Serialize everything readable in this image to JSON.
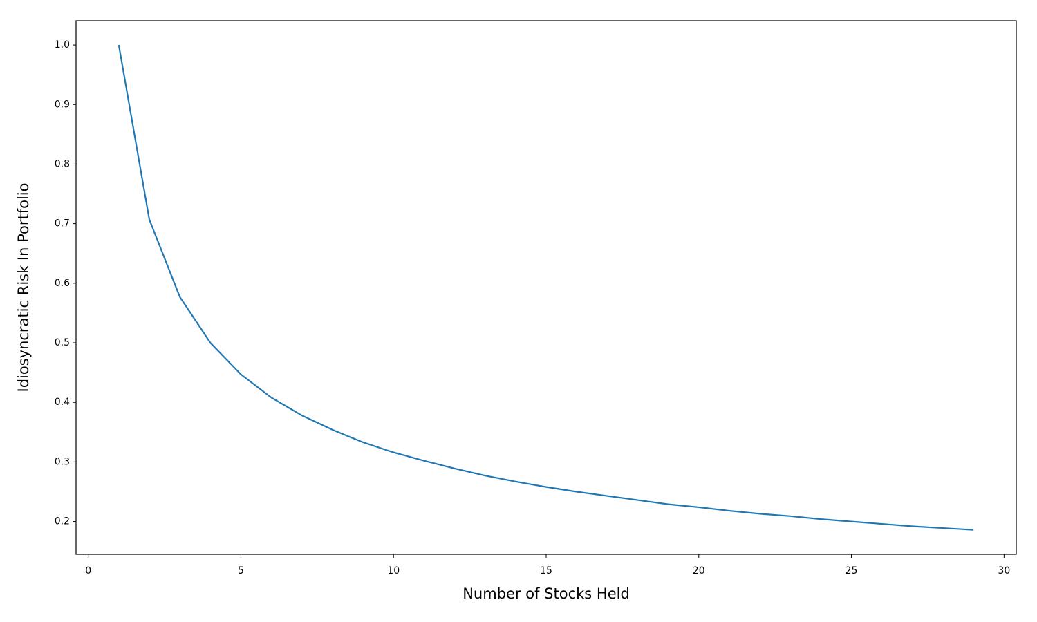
{
  "chart_data": {
    "type": "line",
    "x_label": "Number of Stocks Held",
    "y_label": "Idiosyncratic Risk In Portfolio",
    "x": [
      1,
      2,
      3,
      4,
      5,
      6,
      7,
      8,
      9,
      10,
      11,
      12,
      13,
      14,
      15,
      16,
      17,
      18,
      19,
      20,
      21,
      22,
      23,
      24,
      25,
      26,
      27,
      28,
      29
    ],
    "series": [
      {
        "color": "#1f77b4",
        "values": [
          1,
          0.707,
          0.577,
          0.5,
          0.447,
          0.408,
          0.378,
          0.354,
          0.333,
          0.316,
          0.302,
          0.289,
          0.277,
          0.267,
          0.258,
          0.25,
          0.243,
          0.236,
          0.229,
          0.224,
          0.218,
          0.213,
          0.209,
          0.204,
          0.2,
          0.196,
          0.192,
          0.189,
          0.186
        ]
      }
    ],
    "xlim": [
      -0.4,
      30.4
    ],
    "xticks": [
      0,
      5,
      10,
      15,
      20,
      25,
      30
    ],
    "ylim": [
      0.145,
      1.0407
    ],
    "yticks": [
      0.2,
      0.3,
      0.4,
      0.5,
      0.6,
      0.7,
      0.8,
      0.9,
      {
        "value": 1,
        "label": "1.0"
      }
    ],
    "grid": false
  }
}
